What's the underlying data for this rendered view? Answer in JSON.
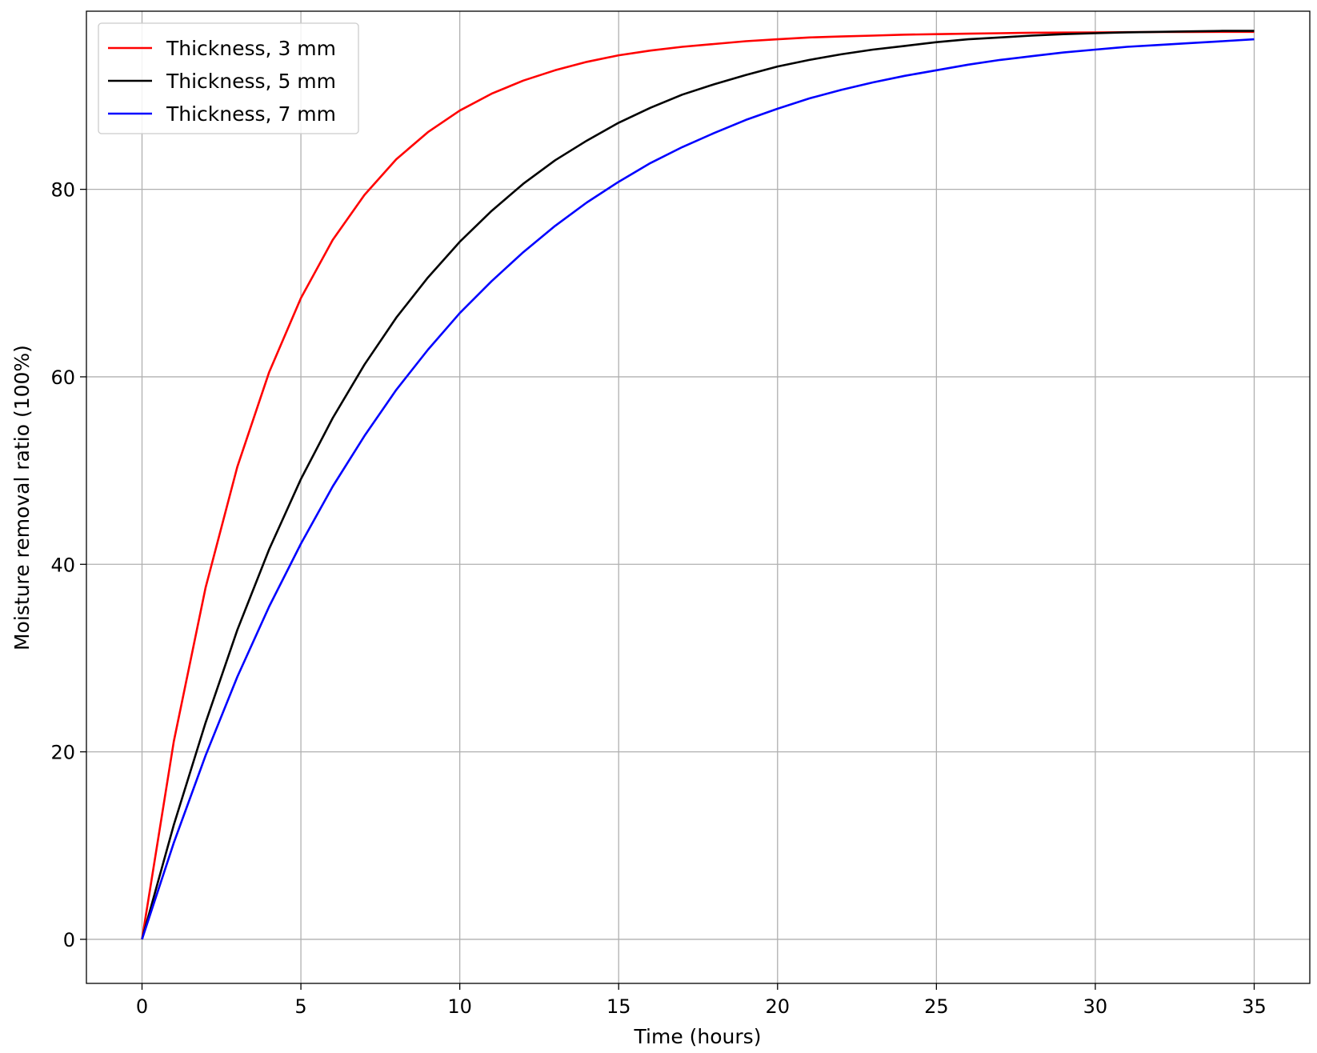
{
  "chart_data": {
    "type": "line",
    "title": "",
    "xlabel": "Time (hours)",
    "ylabel": "Moisture removal ratio (100%)",
    "xlim": [
      -1.75,
      36.75
    ],
    "ylim": [
      -4.7,
      99.0
    ],
    "xticks": [
      0,
      5,
      10,
      15,
      20,
      25,
      30,
      35
    ],
    "yticks": [
      0,
      20,
      40,
      60,
      80
    ],
    "grid": true,
    "legend_position": "top-left",
    "x": [
      0,
      1,
      2,
      3,
      4,
      5,
      6,
      7,
      8,
      9,
      10,
      11,
      12,
      13,
      14,
      15,
      16,
      17,
      18,
      19,
      20,
      21,
      22,
      23,
      24,
      25,
      26,
      27,
      28,
      29,
      30,
      31,
      32,
      33,
      34,
      35
    ],
    "series": [
      {
        "name": "Thickness, 3 mm",
        "color": "#ff0000",
        "values": [
          0,
          21.1,
          37.5,
          50.4,
          60.5,
          68.4,
          74.6,
          79.4,
          83.2,
          86.1,
          88.4,
          90.2,
          91.6,
          92.7,
          93.6,
          94.3,
          94.8,
          95.2,
          95.5,
          95.8,
          96.0,
          96.2,
          96.3,
          96.4,
          96.5,
          96.55,
          96.6,
          96.65,
          96.7,
          96.72,
          96.74,
          96.76,
          96.78,
          96.79,
          96.8,
          96.8
        ]
      },
      {
        "name": "Thickness, 5 mm",
        "color": "#000000",
        "values": [
          0,
          12.2,
          23.1,
          33.0,
          41.6,
          49.1,
          55.6,
          61.3,
          66.3,
          70.6,
          74.4,
          77.7,
          80.6,
          83.1,
          85.2,
          87.1,
          88.7,
          90.1,
          91.2,
          92.2,
          93.1,
          93.8,
          94.4,
          94.9,
          95.3,
          95.7,
          96.0,
          96.2,
          96.4,
          96.55,
          96.65,
          96.75,
          96.8,
          96.85,
          96.9,
          96.9
        ]
      },
      {
        "name": "Thickness, 7 mm",
        "color": "#0000ff",
        "values": [
          0,
          10.3,
          19.6,
          28.0,
          35.5,
          42.2,
          48.3,
          53.7,
          58.6,
          62.9,
          66.8,
          70.2,
          73.3,
          76.1,
          78.6,
          80.8,
          82.8,
          84.5,
          86.0,
          87.4,
          88.6,
          89.7,
          90.6,
          91.4,
          92.1,
          92.7,
          93.3,
          93.8,
          94.2,
          94.6,
          94.9,
          95.2,
          95.4,
          95.6,
          95.8,
          96.0
        ]
      }
    ]
  }
}
